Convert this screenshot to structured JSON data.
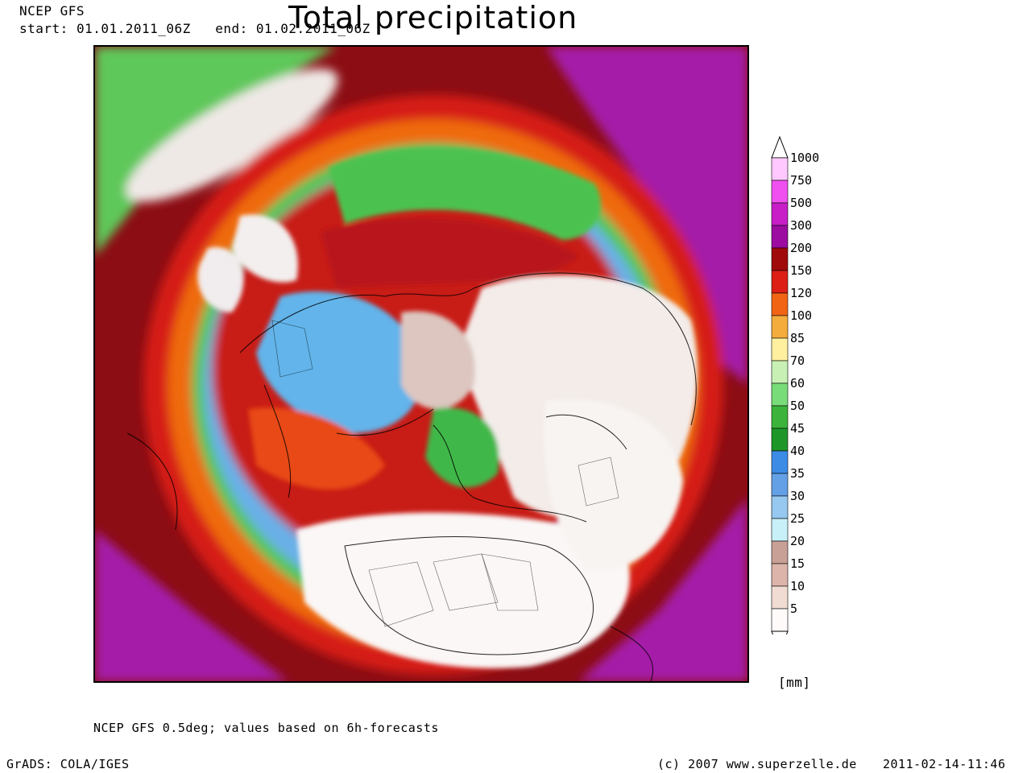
{
  "header": {
    "model": "NCEP GFS",
    "start_label": "start:",
    "start": "01.01.2011_06Z",
    "end_label": "end:",
    "end": "01.02.2011_06Z",
    "title": "Total precipitation"
  },
  "map": {
    "projection": "polar stereographic, north pole centered",
    "colors": {
      "low": "#f4f0ee",
      "green": "#44c84a",
      "blue": "#4aa0e6",
      "orange": "#ef6a10",
      "red": "#d61c14",
      "darkred": "#8c0d14",
      "purple": "#a41aa8",
      "magenta": "#dd30dd"
    }
  },
  "legend": {
    "unit": "[mm]",
    "levels": [
      "1000",
      "750",
      "500",
      "300",
      "200",
      "150",
      "120",
      "100",
      "85",
      "70",
      "60",
      "50",
      "45",
      "40",
      "35",
      "30",
      "25",
      "20",
      "15",
      "10",
      "5"
    ],
    "colors": [
      "#ffc8ff",
      "#f050f0",
      "#c81ec8",
      "#9c0ca0",
      "#a00a0a",
      "#dc1e14",
      "#f06414",
      "#f4ac3c",
      "#fff0a0",
      "#c8f0b4",
      "#78dc78",
      "#3cb43c",
      "#1e9628",
      "#3c8ce6",
      "#64a0e6",
      "#96c8f0",
      "#c8f0f8",
      "#c8a096",
      "#dcb4aa",
      "#f0dcd2",
      "#fffafa"
    ]
  },
  "footer": {
    "note": "NCEP GFS 0.5deg; values based on 6h-forecasts",
    "software": "GrADS: COLA/IGES",
    "copyright": "(c) 2007 www.superzelle.de",
    "timestamp": "2011-02-14-11:46"
  }
}
